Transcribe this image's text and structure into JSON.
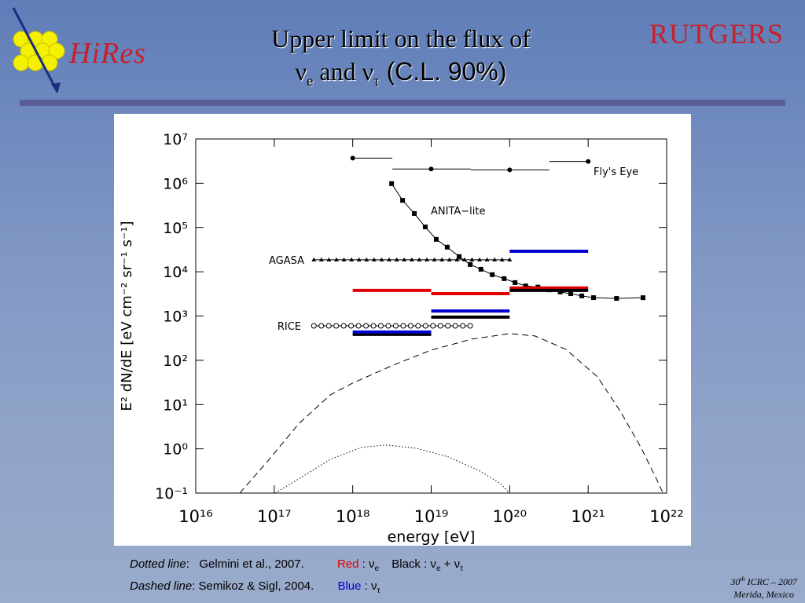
{
  "slide": {
    "title_line1": "Upper limit on the flux of",
    "title_line2": [
      {
        "text": "ν",
        "sub": "e"
      },
      {
        "text": " and ν",
        "sub": "τ"
      },
      {
        "text": " (C.L. 90%)"
      }
    ],
    "logo_left": "HiRes",
    "logo_right": "RUTGERS",
    "notes": {
      "dotted_label": "Dotted line",
      "dotted_source": ":   Gelmini et al., 2007.",
      "dashed_label": "Dashed line",
      "dashed_source": ": Semikoz & Sigl, 2004.",
      "red": "Red",
      "red_sym": " : ν",
      "red_sub": "e",
      "black": "Black : ν",
      "black_sub1": "e",
      "black_plus": " + ν",
      "black_sub2": "τ",
      "blue": "Blue",
      "blue_sym": " : ν",
      "blue_sub": "τ"
    },
    "conference": {
      "ord": "30",
      "ord_sup": "th",
      "rest": " ICRC – 2007",
      "place": "Merida, Mexico"
    }
  },
  "chart_data": {
    "type": "line",
    "xlog": true,
    "ylog": true,
    "x_label": "energy [eV]",
    "y_label": "E² dN/dE [eV cm⁻² sr⁻¹ s⁻¹]",
    "xlim": [
      1e+16,
      1e+22
    ],
    "ylim": [
      0.1,
      10000000.0
    ],
    "xticks": [
      {
        "value": 1e+16,
        "label": "10¹⁶"
      },
      {
        "value": 1e+17,
        "label": "10¹⁷"
      },
      {
        "value": 1e+18,
        "label": "10¹⁸"
      },
      {
        "value": 1e+19,
        "label": "10¹⁹"
      },
      {
        "value": 1e+20,
        "label": "10²⁰"
      },
      {
        "value": 1e+21,
        "label": "10²¹"
      },
      {
        "value": 1e+22,
        "label": "10²²"
      }
    ],
    "yticks": [
      {
        "value": 0.1,
        "label": "10⁻¹"
      },
      {
        "value": 1,
        "label": "10⁰"
      },
      {
        "value": 10,
        "label": "10¹"
      },
      {
        "value": 100,
        "label": "10²"
      },
      {
        "value": 1000,
        "label": "10³"
      },
      {
        "value": 10000,
        "label": "10⁴"
      },
      {
        "value": 100000,
        "label": "10⁵"
      },
      {
        "value": 1000000,
        "label": "10⁶"
      },
      {
        "value": 10000000,
        "label": "10⁷"
      }
    ],
    "series": [
      {
        "name": "Fly's Eye",
        "kind": "steps",
        "color": "#000000",
        "x": [
          1e+18,
          1e+19,
          1e+20,
          1e+21
        ],
        "x_low": [
          1e+18,
          3.2e+18,
          3.2e+19,
          3.2e+20
        ],
        "x_high": [
          3.2e+18,
          3.2e+19,
          3.2e+20,
          1e+21
        ],
        "values": [
          3700000,
          2100000,
          2000000,
          3100000
        ]
      },
      {
        "name": "ANITA−lite",
        "kind": "markers",
        "marker": "square",
        "color": "#000000",
        "x": [
          3.13e+18,
          4.32e+18,
          6.1e+18,
          8.4e+18,
          1.16e+19,
          1.6e+19,
          2.27e+19,
          3.14e+19,
          4.3e+19,
          6e+19,
          8.5e+19,
          1.17e+20,
          1.6e+20,
          2.29e+20,
          3.2e+20,
          4.4e+20,
          6e+20,
          8.3e+20,
          1.17e+21,
          2.3e+21,
          5e+21
        ],
        "values": [
          980000,
          410000,
          207000,
          103000,
          54000,
          36000,
          22000,
          14600,
          11400,
          8600,
          7000,
          5700,
          4800,
          4500,
          3900,
          3500,
          3200,
          2850,
          2600,
          2500,
          2600
        ]
      },
      {
        "name": "AGASA",
        "kind": "range",
        "marker": "triangle",
        "color": "#000000",
        "x": [
          3.2e+17,
          1e+20
        ],
        "values": [
          18600,
          18600
        ]
      },
      {
        "name": "RICE",
        "kind": "range",
        "marker": "circle",
        "color": "#000000",
        "x": [
          3.2e+17,
          3.14e+19
        ],
        "values": [
          600,
          600
        ]
      },
      {
        "kind": "bins",
        "color": "#e00000",
        "bins": [
          1e+18,
          1e+19,
          1e+20,
          1e+21
        ],
        "values": [
          3800,
          3200,
          4300
        ]
      },
      {
        "kind": "bins",
        "color": "#000000",
        "bins": [
          1e+18,
          1e+19,
          1e+20,
          1e+21
        ],
        "values": [
          385,
          945,
          3800
        ]
      },
      {
        "kind": "bins",
        "color": "#0000d0",
        "bins": [
          1e+18,
          1e+19,
          1e+20,
          1e+21
        ],
        "values": [
          435,
          1300,
          29000
        ]
      },
      {
        "kind": "curve",
        "dash": "dashed",
        "color": "#000000",
        "x": [
          3.64e+16,
          8.2e+16,
          2.06e+17,
          5.2e+17,
          1e+18,
          3.3e+18,
          1e+19,
          3.3e+19,
          1e+20,
          2.1e+20,
          5.2e+20,
          1.32e+21,
          2.6e+21,
          4.7e+21,
          7.4e+21,
          9e+21
        ],
        "values": [
          0.1,
          0.52,
          3.7,
          16.6,
          30.6,
          78,
          170,
          301,
          401,
          355,
          177,
          42,
          6.8,
          1.08,
          0.21,
          0.1
        ]
      },
      {
        "kind": "curve",
        "dash": "dotted",
        "color": "#000000",
        "x": [
          1.03e+17,
          2.06e+17,
          5.2e+17,
          1.3e+18,
          2.6e+18,
          6.5e+18,
          1.64e+19,
          4.1e+19,
          7.4e+19,
          1e+20
        ],
        "values": [
          0.1,
          0.21,
          0.58,
          1.08,
          1.22,
          1.03,
          0.66,
          0.32,
          0.17,
          0.1
        ]
      }
    ]
  }
}
